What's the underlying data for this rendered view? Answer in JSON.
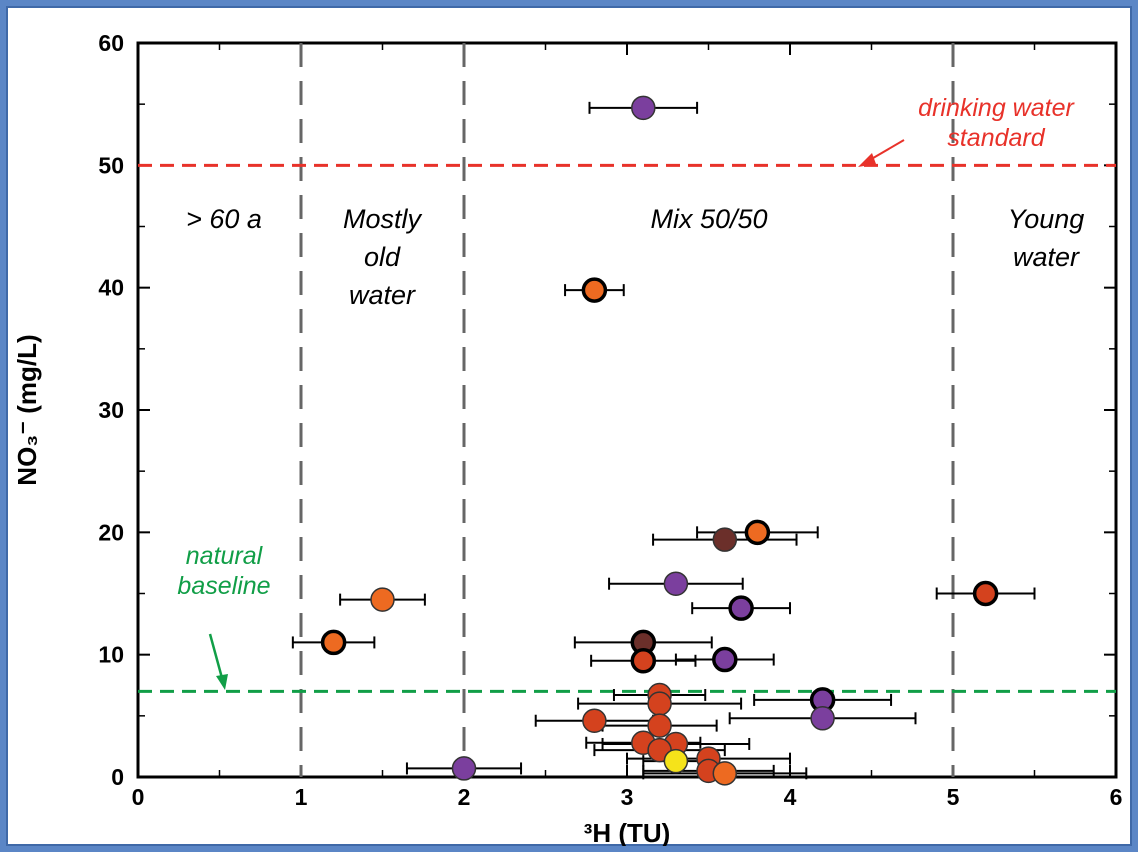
{
  "chart_data": {
    "type": "scatter",
    "title": "",
    "xlabel": "³H (TU)",
    "ylabel": "NO₃⁻ (mg/L)",
    "xlim": [
      0,
      6
    ],
    "ylim": [
      0,
      60
    ],
    "x_ticks": [
      "0",
      "1",
      "2",
      "3",
      "4",
      "5",
      "6"
    ],
    "y_ticks": [
      "0",
      "10",
      "20",
      "30",
      "40",
      "50",
      "60"
    ],
    "grid": false,
    "legend": "none",
    "zone_dividers_x": [
      1,
      2,
      5
    ],
    "zones": [
      {
        "label": "> 60 a",
        "x": 0.5,
        "y": 46
      },
      {
        "label": "Mostly\nold\nwater",
        "x": 1.5,
        "y": 46
      },
      {
        "label": "Mix 50/50",
        "x": 3.5,
        "y": 46
      },
      {
        "label": "Young\nwater",
        "x": 5.5,
        "y": 46
      }
    ],
    "reference_lines": [
      {
        "label": "drinking water\nstandard",
        "y": 50,
        "color": "#e8322a"
      },
      {
        "label": "natural\nbaseline",
        "y": 7,
        "color": "#119e47"
      }
    ],
    "points": [
      {
        "x": 3.1,
        "y": 54.7,
        "xerr": 0.33,
        "color": "#7b3f9e"
      },
      {
        "x": 2.8,
        "y": 39.8,
        "xerr": 0.18,
        "color": "#ed6a21",
        "outlined": true
      },
      {
        "x": 3.8,
        "y": 20.0,
        "xerr": 0.37,
        "color": "#ed6a21",
        "outlined": true
      },
      {
        "x": 3.6,
        "y": 19.4,
        "xerr": 0.44,
        "color": "#6b2f2a"
      },
      {
        "x": 3.3,
        "y": 15.8,
        "xerr": 0.41,
        "color": "#7b3f9e"
      },
      {
        "x": 5.2,
        "y": 15.0,
        "xerr": 0.3,
        "color": "#d4421e",
        "outlined": true
      },
      {
        "x": 1.5,
        "y": 14.5,
        "xerr": 0.26,
        "color": "#ed6a21"
      },
      {
        "x": 3.7,
        "y": 13.8,
        "xerr": 0.3,
        "color": "#7b3f9e",
        "outlined": true
      },
      {
        "x": 1.2,
        "y": 11.0,
        "xerr": 0.25,
        "color": "#ed6a21",
        "outlined": true
      },
      {
        "x": 3.1,
        "y": 11.0,
        "xerr": 0.42,
        "color": "#6b2f2a",
        "outlined": true
      },
      {
        "x": 3.1,
        "y": 9.5,
        "xerr": 0.32,
        "color": "#d4421e",
        "outlined": true
      },
      {
        "x": 3.6,
        "y": 9.6,
        "xerr": 0.3,
        "color": "#7b3f9e",
        "outlined": true
      },
      {
        "x": 3.2,
        "y": 6.7,
        "xerr": 0.28,
        "color": "#d4421e"
      },
      {
        "x": 4.2,
        "y": 6.3,
        "xerr": 0.42,
        "color": "#7b3f9e",
        "outlined": true
      },
      {
        "x": 3.2,
        "y": 6.0,
        "xerr": 0.5,
        "color": "#d4421e"
      },
      {
        "x": 2.8,
        "y": 4.6,
        "xerr": 0.36,
        "color": "#d4421e"
      },
      {
        "x": 4.2,
        "y": 4.8,
        "xerr": 0.57,
        "color": "#7b3f9e"
      },
      {
        "x": 3.2,
        "y": 4.2,
        "xerr": 0.35,
        "color": "#d4421e"
      },
      {
        "x": 3.1,
        "y": 2.8,
        "xerr": 0.35,
        "color": "#d4421e"
      },
      {
        "x": 3.3,
        "y": 2.7,
        "xerr": 0.45,
        "color": "#d4421e"
      },
      {
        "x": 3.2,
        "y": 2.2,
        "xerr": 0.4,
        "color": "#d4421e"
      },
      {
        "x": 3.5,
        "y": 1.5,
        "xerr": 0.5,
        "color": "#d4421e"
      },
      {
        "x": 3.3,
        "y": 1.3,
        "xerr": 0.2,
        "color": "#f5e31a"
      },
      {
        "x": 3.5,
        "y": 0.5,
        "xerr": 0.4,
        "color": "#d4421e"
      },
      {
        "x": 2.0,
        "y": 0.7,
        "xerr": 0.35,
        "color": "#7b3f9e"
      },
      {
        "x": 3.6,
        "y": 0.3,
        "xerr": 0.5,
        "color": "#ed6a21"
      }
    ]
  }
}
